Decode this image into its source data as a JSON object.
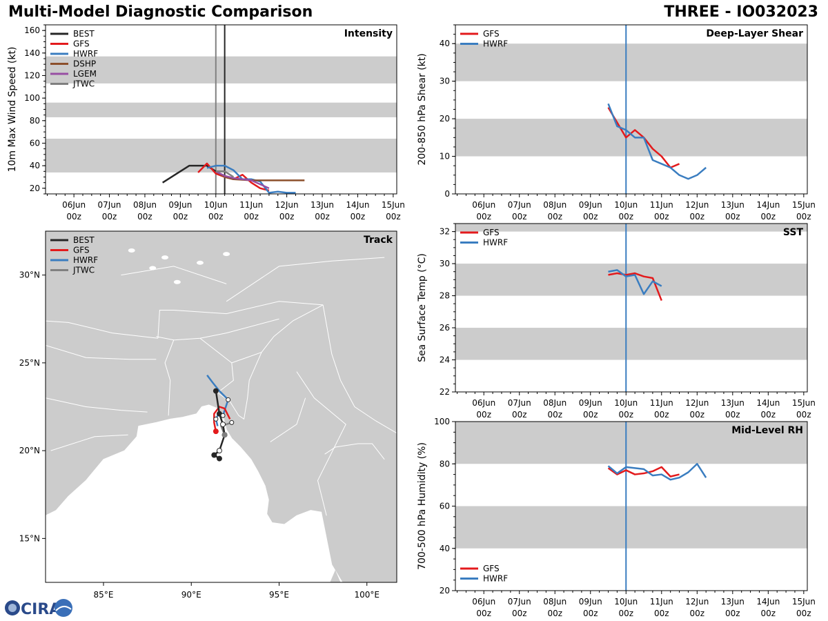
{
  "header": {
    "title_left": "Multi-Model Diagnostic Comparison",
    "title_right": "THREE - IO032023"
  },
  "colors": {
    "BEST": "#262626",
    "GFS": "#e31a1c",
    "HWRF": "#3a7dc0",
    "DSHP": "#8c4f2b",
    "LGEM": "#984ea3",
    "JTWC": "#808080",
    "band": "#cccccc"
  },
  "time_axis": {
    "day_labels": [
      "06Jun",
      "07Jun",
      "08Jun",
      "09Jun",
      "10Jun",
      "11Jun",
      "12Jun",
      "13Jun",
      "14Jun",
      "15Jun"
    ],
    "hour_label": "00z"
  },
  "panels": {
    "intensity": {
      "title": "Intensity",
      "ylabel": "10m Max Wind Speed (kt)",
      "yticks": [
        "20",
        "40",
        "60",
        "80",
        "100",
        "120",
        "140",
        "160"
      ],
      "legend": [
        "BEST",
        "GFS",
        "HWRF",
        "DSHP",
        "LGEM",
        "JTWC"
      ]
    },
    "shear": {
      "title": "Deep-Layer Shear",
      "ylabel": "200-850 hPa Shear (kt)",
      "yticks": [
        "0",
        "10",
        "20",
        "30",
        "40"
      ],
      "legend": [
        "GFS",
        "HWRF"
      ]
    },
    "sst": {
      "title": "SST",
      "ylabel": "Sea Surface Temp (°C)",
      "yticks": [
        "22",
        "24",
        "26",
        "28",
        "30",
        "32"
      ],
      "legend": [
        "GFS",
        "HWRF"
      ]
    },
    "rh": {
      "title": "Mid-Level RH",
      "ylabel": "700-500 hPa Humidity (%)",
      "yticks": [
        "20",
        "40",
        "60",
        "80",
        "100"
      ],
      "legend": [
        "GFS",
        "HWRF"
      ]
    },
    "track": {
      "title": "Track",
      "lat_labels": [
        "15°N",
        "20°N",
        "25°N",
        "30°N"
      ],
      "lon_labels": [
        "85°E",
        "90°E",
        "95°E",
        "100°E"
      ],
      "legend": [
        "BEST",
        "GFS",
        "HWRF",
        "JTWC"
      ]
    }
  },
  "chart_data": [
    {
      "type": "line",
      "title": "Intensity",
      "xlabel": "",
      "ylabel": "10m Max Wind Speed (kt)",
      "x_units": "days since 06Jun 00z",
      "xlim": [
        -0.8,
        9.1
      ],
      "ylim": [
        15,
        165
      ],
      "bands": [
        [
          34,
          64
        ],
        [
          83,
          96
        ],
        [
          113,
          137
        ]
      ],
      "vlines": [
        {
          "x": 4.0,
          "color": "#808080"
        },
        {
          "x": 4.25,
          "color": "#262626"
        }
      ],
      "series": [
        {
          "name": "BEST",
          "x": [
            2.5,
            3.25,
            3.75,
            4.0,
            4.25
          ],
          "y": [
            25,
            40,
            40,
            35,
            35
          ]
        },
        {
          "name": "GFS",
          "x": [
            3.5,
            3.75,
            4.0,
            4.25,
            4.5,
            4.75,
            5.0,
            5.25,
            5.5
          ],
          "y": [
            34,
            42,
            33,
            30,
            28,
            32,
            25,
            20,
            18
          ]
        },
        {
          "name": "HWRF",
          "x": [
            3.75,
            4.0,
            4.25,
            4.5,
            4.75,
            5.0,
            5.25,
            5.5,
            5.75,
            6.0,
            6.25
          ],
          "y": [
            38,
            40,
            40,
            36,
            28,
            28,
            26,
            16,
            17,
            16,
            16
          ]
        },
        {
          "name": "DSHP",
          "x": [
            4.0,
            4.25,
            4.5,
            5.0,
            5.5,
            6.0,
            6.5
          ],
          "y": [
            35,
            30,
            28,
            27,
            27,
            27,
            27
          ]
        },
        {
          "name": "LGEM",
          "x": [
            4.0,
            4.25,
            4.5,
            5.0,
            5.5
          ],
          "y": [
            35,
            31,
            29,
            27,
            20
          ]
        },
        {
          "name": "JTWC",
          "x": [
            4.0,
            4.25,
            4.5
          ],
          "y": [
            35,
            35,
            30
          ]
        }
      ]
    },
    {
      "type": "line",
      "title": "Deep-Layer Shear",
      "ylabel": "200-850 hPa Shear (kt)",
      "xlim": [
        -0.8,
        9.1
      ],
      "ylim": [
        0,
        45
      ],
      "bands": [
        [
          10,
          20
        ],
        [
          30,
          40
        ]
      ],
      "vlines": [
        {
          "x": 4.0,
          "color": "#3a7dc0"
        }
      ],
      "series": [
        {
          "name": "GFS",
          "x": [
            3.5,
            3.75,
            4.0,
            4.25,
            4.5,
            4.75,
            5.0,
            5.25,
            5.5
          ],
          "y": [
            23,
            19,
            15,
            17,
            15,
            12,
            10,
            7,
            8
          ]
        },
        {
          "name": "HWRF",
          "x": [
            3.5,
            3.75,
            4.0,
            4.25,
            4.5,
            4.75,
            5.0,
            5.25,
            5.5,
            5.75,
            6.0,
            6.25
          ],
          "y": [
            24,
            18,
            17,
            15,
            15,
            9,
            8,
            7,
            5,
            4,
            5,
            7
          ]
        }
      ]
    },
    {
      "type": "line",
      "title": "SST",
      "ylabel": "Sea Surface Temp (°C)",
      "xlim": [
        -0.8,
        9.1
      ],
      "ylim": [
        22,
        32.5
      ],
      "bands": [
        [
          24,
          26
        ],
        [
          28,
          30
        ],
        [
          32,
          34
        ]
      ],
      "vlines": [
        {
          "x": 4.0,
          "color": "#3a7dc0"
        }
      ],
      "series": [
        {
          "name": "GFS",
          "x": [
            3.5,
            3.75,
            4.0,
            4.25,
            4.5,
            4.75,
            5.0
          ],
          "y": [
            29.3,
            29.4,
            29.3,
            29.4,
            29.2,
            29.1,
            27.7
          ]
        },
        {
          "name": "HWRF",
          "x": [
            3.5,
            3.75,
            4.0,
            4.25,
            4.5,
            4.75,
            5.0
          ],
          "y": [
            29.5,
            29.6,
            29.2,
            29.3,
            28.1,
            28.9,
            28.6
          ]
        }
      ]
    },
    {
      "type": "line",
      "title": "Mid-Level RH",
      "ylabel": "700-500 hPa Humidity (%)",
      "xlim": [
        -0.8,
        9.1
      ],
      "ylim": [
        20,
        100
      ],
      "bands": [
        [
          40,
          60
        ],
        [
          80,
          100
        ]
      ],
      "vlines": [
        {
          "x": 4.0,
          "color": "#3a7dc0"
        }
      ],
      "series": [
        {
          "name": "GFS",
          "x": [
            3.5,
            3.75,
            4.0,
            4.25,
            4.5,
            4.75,
            5.0,
            5.25,
            5.5
          ],
          "y": [
            78,
            75,
            77,
            75,
            75.5,
            76.5,
            78.5,
            74,
            75
          ]
        },
        {
          "name": "HWRF",
          "x": [
            3.5,
            3.75,
            4.0,
            4.25,
            4.5,
            4.75,
            5.0,
            5.25,
            5.5,
            5.75,
            6.0,
            6.25
          ],
          "y": [
            79,
            75.5,
            78.5,
            78,
            77.5,
            74.5,
            75,
            72.5,
            73.5,
            76,
            80,
            73.5
          ]
        }
      ]
    },
    {
      "type": "scatter",
      "title": "Track",
      "x_units": "degrees east longitude",
      "y_units": "degrees north latitude",
      "xlim": [
        81.7,
        101.7
      ],
      "ylim": [
        12.5,
        32.5
      ],
      "series": [
        {
          "name": "BEST",
          "x": [
            91.6,
            91.3,
            91.6,
            91.9,
            91.8,
            91.6,
            91.4
          ],
          "y": [
            19.55,
            19.75,
            20.0,
            20.9,
            21.5,
            22.1,
            23.4
          ]
        },
        {
          "name": "GFS",
          "x": [
            91.4,
            91.3,
            91.3,
            91.6,
            91.9,
            92.2
          ],
          "y": [
            21.1,
            21.6,
            22.1,
            22.5,
            22.4,
            21.8
          ]
        },
        {
          "name": "HWRF",
          "x": [
            91.5,
            91.4,
            91.6,
            91.8,
            92.1,
            91.6,
            91.2,
            90.9
          ],
          "y": [
            21.4,
            21.8,
            22.2,
            22.0,
            22.9,
            23.4,
            23.9,
            24.3
          ]
        },
        {
          "name": "JTWC",
          "x": [
            91.9,
            91.7,
            92.3
          ],
          "y": [
            20.9,
            21.4,
            21.6
          ]
        }
      ]
    }
  ]
}
